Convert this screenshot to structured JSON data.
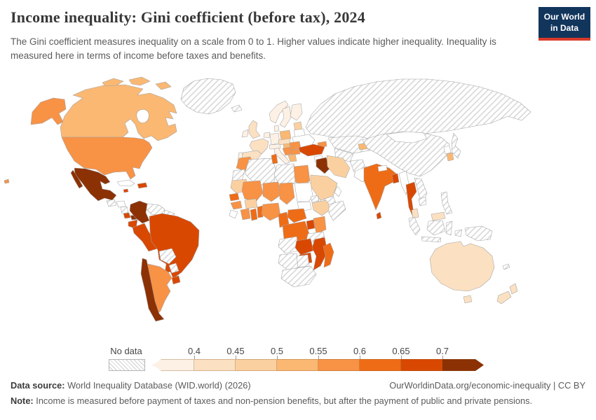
{
  "header": {
    "title": "Income inequality: Gini coefficient (before tax), 2024",
    "subtitle": "The Gini coefficient measures inequality on a scale from 0 to 1. Higher values indicate higher inequality. Inequality is measured here in terms of income before taxes and benefits.",
    "logo": {
      "line1": "Our World",
      "line2": "in Data",
      "bg_color": "#12355c",
      "accent_color": "#d93a2b"
    }
  },
  "legend": {
    "no_data_label": "No data",
    "ticks": [
      "0.4",
      "0.45",
      "0.5",
      "0.55",
      "0.6",
      "0.65",
      "0.7"
    ],
    "colors": [
      "#fdf1e5",
      "#fbe0c2",
      "#fbd0a0",
      "#fab873",
      "#f89245",
      "#ef6c17",
      "#d94801",
      "#8c3104"
    ]
  },
  "footer": {
    "data_source_label": "Data source:",
    "data_source_text": " World Inequality Database (WID.world) (2026)",
    "link_text": "OurWorldinData.org/economic-inequality | CC BY",
    "note_label": "Note:",
    "note_text": " Income is measured before payment of taxes and non-pension benefits, but after the payment of public and private pensions."
  },
  "chart_data": {
    "type": "choropleth",
    "title": "Income inequality: Gini coefficient (before tax), 2024",
    "year": 2024,
    "unit": "Gini coefficient (scale 0–1)",
    "legend_position": "bottom",
    "legend_bins": [
      {
        "id": "b1",
        "range": "< 0.4",
        "color": "#fdf1e5"
      },
      {
        "id": "b2",
        "range": "0.4–0.45",
        "color": "#fbe0c2"
      },
      {
        "id": "b3",
        "range": "0.45–0.5",
        "color": "#fbd0a0"
      },
      {
        "id": "b4",
        "range": "0.5–0.55",
        "color": "#fab873"
      },
      {
        "id": "b5",
        "range": "0.55–0.6",
        "color": "#f89245"
      },
      {
        "id": "b6",
        "range": "0.6–0.65",
        "color": "#ef6c17"
      },
      {
        "id": "b7",
        "range": "0.65–0.7",
        "color": "#d94801"
      },
      {
        "id": "b8",
        "range": "> 0.7",
        "color": "#8c3104"
      },
      {
        "id": "no",
        "range": "No data (hatched)",
        "color": "hatch"
      },
      {
        "id": "w",
        "range": "No data",
        "color": "#ffffff"
      }
    ],
    "countries": {
      "canada": "b4",
      "usa": "b5",
      "alaska": "b5",
      "hawaii": "b5",
      "mexico": "b8",
      "baja": "b8",
      "greenland": "no",
      "iceland": "no",
      "guatemala": "no",
      "honduras": "w",
      "nicaragua": "no",
      "costa-rica": "b7",
      "panama": "b8",
      "cuba": "w",
      "jamaica": "b7",
      "hispaniola": "b7",
      "colombia": "b8",
      "venezuela": "no",
      "guianas": "no",
      "ecuador": "b7",
      "peru": "b7",
      "brazil": "b7",
      "bolivia": "no",
      "paraguay": "no",
      "chile": "b8",
      "argentina": "b5",
      "uruguay": "b7",
      "norway": "b1",
      "sweden": "b1",
      "finland": "b1",
      "denmark": "b1",
      "baltics": "b3",
      "uk": "b2",
      "ireland": "b1",
      "france": "b2",
      "spain": "b2",
      "portugal": "b1",
      "germany": "b1",
      "benelux": "b1",
      "poland": "b4",
      "czech-slovakia": "b2",
      "austria-switzerland": "b1",
      "italy": "b1",
      "hungary": "b4",
      "balkans": "b5",
      "romania": "b5",
      "bulgaria": "b5",
      "greece": "b4",
      "ukraine": "w",
      "belarus": "w",
      "russia": "no",
      "kazakhstan": "no",
      "central-asia": "no",
      "kyrgyzstan": "b4",
      "caucasus": "b5",
      "turkey": "b7",
      "syria": "w",
      "iraq": "b8",
      "iran": "b3",
      "afghanistan": "no",
      "pakistan": "w",
      "saudi-arabia": "b3",
      "yemen": "no",
      "oman": "w",
      "egypt": "b5",
      "libya": "no",
      "tunisia": "b6",
      "algeria": "no",
      "morocco": "b5",
      "western-sahara": "no",
      "mauritania": "b3",
      "mali": "b5",
      "niger": "b5",
      "chad": "b5",
      "sudan": "w",
      "south-sudan": "w",
      "eritrea": "no",
      "ethiopia": "b3",
      "somalia": "no",
      "senegal": "b6",
      "guinea": "b5",
      "sierra-leone-liberia": "w",
      "cote-divoire": "b5",
      "ghana": "b6",
      "togo-benin": "b6",
      "burkina-faso": "b3",
      "nigeria": "b5",
      "cameroon": "b6",
      "central-african-republic": "b6",
      "drc": "b6",
      "uganda": "b7",
      "kenya": "b5",
      "tanzania": "no",
      "angola": "no",
      "zambia": "b7",
      "malawi": "b6",
      "mozambique": "b7",
      "zimbabwe": "b7",
      "namibia": "no",
      "botswana": "no",
      "south-africa": "no",
      "madagascar": "b6",
      "china": "no",
      "mongolia": "w",
      "japan": "no",
      "north-korea": "w",
      "south-korea": "b4",
      "india": "b6",
      "nepal": "w",
      "bangladesh": "b7",
      "sri-lanka": "b7",
      "myanmar": "w",
      "thailand": "b7",
      "laos-vietnam": "no",
      "cambodia": "no",
      "malaysia": "b2",
      "malaysia-borneo": "b2",
      "sumatra": "no",
      "java": "no",
      "borneo-indonesia": "no",
      "sulawesi": "no",
      "lesser-sunda": "no",
      "new-guinea": "no",
      "philippines": "no",
      "australia": "b2",
      "tasmania": "b2",
      "new-zealand-north": "b2",
      "new-zealand-south": "b2",
      "new-caledonia": "no"
    }
  }
}
